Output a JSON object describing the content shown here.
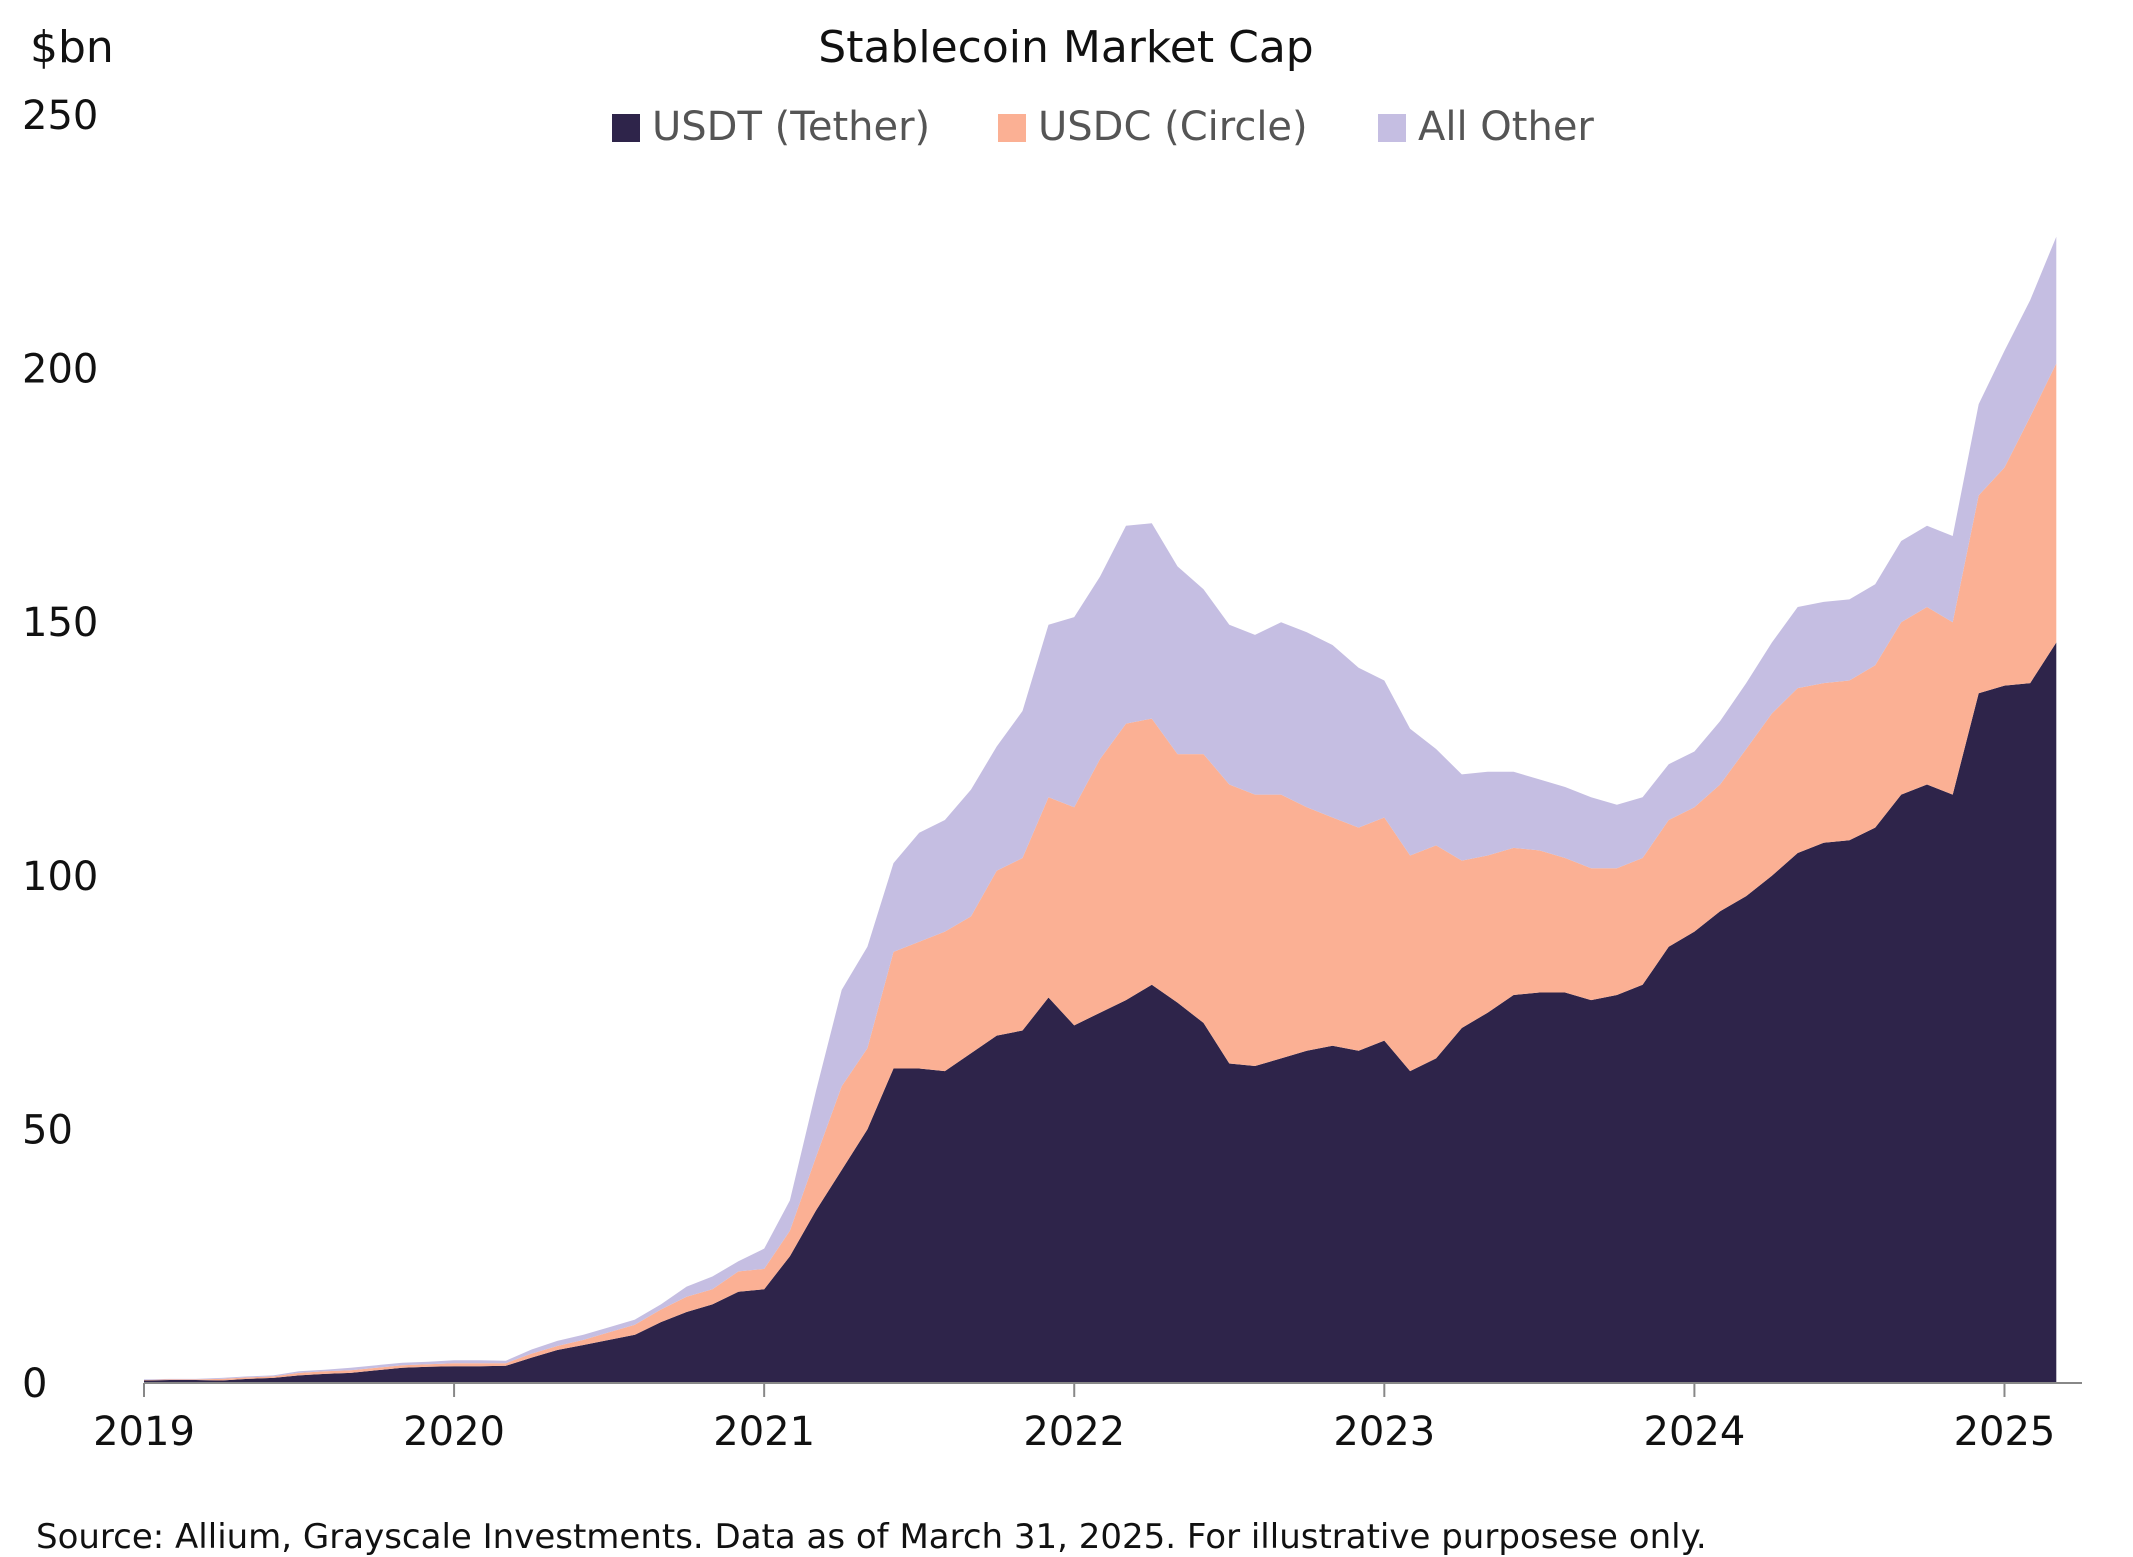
{
  "chart_data": {
    "type": "area",
    "stacked": true,
    "title": "Stablecoin Market Cap",
    "ylabel": "$bn",
    "xlabel": "",
    "ylim": [
      0,
      250
    ],
    "xlim": [
      2019.0,
      2025.25
    ],
    "yticks": [
      "0",
      "50",
      "100",
      "150",
      "200",
      "250"
    ],
    "xticks": [
      "2019",
      "2020",
      "2021",
      "2022",
      "2023",
      "2024",
      "2025"
    ],
    "grid": false,
    "legend_position": "top-center",
    "x": [
      2019.0,
      2019.083,
      2019.167,
      2019.25,
      2019.333,
      2019.417,
      2019.5,
      2019.583,
      2019.667,
      2019.75,
      2019.833,
      2019.917,
      2020.0,
      2020.083,
      2020.167,
      2020.25,
      2020.333,
      2020.417,
      2020.5,
      2020.583,
      2020.667,
      2020.75,
      2020.833,
      2020.917,
      2021.0,
      2021.083,
      2021.167,
      2021.25,
      2021.333,
      2021.417,
      2021.5,
      2021.583,
      2021.667,
      2021.75,
      2021.833,
      2021.917,
      2022.0,
      2022.083,
      2022.167,
      2022.25,
      2022.333,
      2022.417,
      2022.5,
      2022.583,
      2022.667,
      2022.75,
      2022.833,
      2022.917,
      2023.0,
      2023.083,
      2023.167,
      2023.25,
      2023.333,
      2023.417,
      2023.5,
      2023.583,
      2023.667,
      2023.75,
      2023.833,
      2023.917,
      2024.0,
      2024.083,
      2024.167,
      2024.25,
      2024.333,
      2024.417,
      2024.5,
      2024.583,
      2024.667,
      2024.75,
      2024.833,
      2024.917,
      2025.0,
      2025.083,
      2025.167
    ],
    "series": [
      {
        "name": "USDT (Tether)",
        "color": "#2e244a",
        "values": [
          0.5,
          0.6,
          0.6,
          0.5,
          0.8,
          1.0,
          1.5,
          1.8,
          2.0,
          2.5,
          3.0,
          3.2,
          3.3,
          3.3,
          3.4,
          5.0,
          6.5,
          7.5,
          8.5,
          9.5,
          12,
          14,
          15.5,
          18,
          18.5,
          25,
          34,
          42,
          50,
          62,
          62,
          61.5,
          65,
          68.5,
          69.5,
          76,
          70.5,
          73,
          75.5,
          78.5,
          75,
          71,
          63,
          62.5,
          64,
          65.5,
          66.5,
          65.5,
          67.5,
          61.5,
          64,
          70,
          73,
          76.5,
          77,
          77,
          75.5,
          76.5,
          78.5,
          86,
          89,
          93,
          96,
          100,
          104.5,
          106.5,
          107,
          109.5,
          116,
          118,
          116,
          136,
          137.5,
          138,
          146
        ]
      },
      {
        "name": "USDC (Circle)",
        "color": "#fbb094",
        "values": [
          0.1,
          0.1,
          0.1,
          0.3,
          0.3,
          0.3,
          0.5,
          0.5,
          0.5,
          0.5,
          0.5,
          0.5,
          0.6,
          0.6,
          0.5,
          0.8,
          0.8,
          1.0,
          1.5,
          2.0,
          2.5,
          3.0,
          3.0,
          4.0,
          4.0,
          5.0,
          10.5,
          16.5,
          16,
          23,
          25,
          27.5,
          27,
          32.5,
          34,
          39.5,
          43,
          50,
          54.5,
          52.5,
          49,
          53,
          55,
          53.5,
          52,
          48,
          45,
          44,
          44,
          42.5,
          42,
          33,
          31,
          29,
          28,
          26.5,
          26,
          25,
          25,
          25,
          24.5,
          25,
          29,
          32,
          32.5,
          31.5,
          31.5,
          32,
          34,
          35,
          34,
          39,
          43,
          52.5,
          55
        ]
      },
      {
        "name": "All Other",
        "color": "#c5bee2",
        "values": [
          0.1,
          0.1,
          0.1,
          0.2,
          0.2,
          0.2,
          0.3,
          0.3,
          0.5,
          0.5,
          0.5,
          0.5,
          0.6,
          0.6,
          0.5,
          0.8,
          1.0,
          1.0,
          1.0,
          1.0,
          1.0,
          2.0,
          2.5,
          2.0,
          4.0,
          6.0,
          13,
          19,
          20,
          17.5,
          21.5,
          22,
          25,
          24.5,
          29,
          34,
          37.5,
          36,
          39,
          38.5,
          37,
          32.5,
          31.5,
          31.5,
          34,
          34.5,
          34,
          31.5,
          27,
          25,
          19,
          17,
          16.5,
          15,
          14,
          14,
          14,
          12.5,
          12,
          11,
          11,
          12.5,
          13,
          14,
          16,
          16,
          16,
          16,
          16,
          16,
          17,
          18,
          23,
          23,
          25
        ]
      }
    ],
    "source": "Source: Allium, Grayscale Investments. Data as of March 31, 2025. For illustrative purposese only."
  }
}
